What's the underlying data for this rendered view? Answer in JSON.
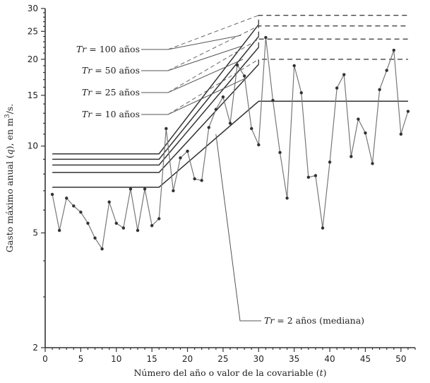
{
  "chart_data": {
    "type": "line",
    "title": "",
    "xlabel": "Número del año o valor de la covariable (t)",
    "ylabel": "Gasto máximo anual (q), en m³/s.",
    "xlim": [
      0,
      52
    ],
    "ylim": [
      2,
      30
    ],
    "y_scale": "log",
    "x_ticks": [
      0,
      5,
      10,
      15,
      20,
      25,
      30,
      35,
      40,
      45,
      50
    ],
    "y_ticks": [
      2,
      5,
      10,
      15,
      20,
      25,
      30
    ],
    "grid": false,
    "observed": {
      "x": [
        1,
        2,
        3,
        4,
        5,
        6,
        7,
        8,
        9,
        10,
        11,
        12,
        13,
        14,
        15,
        16,
        17,
        18,
        19,
        20,
        21,
        22,
        23,
        24,
        25,
        26,
        27,
        28,
        29,
        30,
        31,
        32,
        33,
        34,
        35,
        36,
        37,
        38,
        39,
        40,
        41,
        42,
        43,
        44,
        45,
        46,
        47,
        48,
        49,
        50,
        51
      ],
      "y": [
        6.8,
        5.1,
        6.6,
        6.2,
        5.9,
        5.4,
        4.8,
        4.4,
        6.4,
        5.4,
        5.2,
        7.1,
        5.1,
        7.1,
        5.3,
        5.6,
        11.5,
        7.0,
        9.1,
        9.6,
        7.7,
        7.6,
        11.6,
        13.4,
        14.8,
        12.0,
        19.1,
        17.5,
        11.5,
        10.1,
        23.8,
        14.4,
        9.5,
        6.6,
        19.0,
        15.3,
        7.8,
        7.9,
        5.2,
        8.8,
        15.9,
        17.7,
        9.2,
        12.4,
        11.1,
        8.7,
        15.7,
        18.3,
        21.5,
        11.0,
        13.2
      ]
    },
    "series": [
      {
        "name": "Tr = 100 años",
        "x": [
          1,
          16,
          30
        ],
        "y": [
          9.4,
          9.4,
          26.4
        ],
        "extension": [
          28.4,
          28.4
        ],
        "extension_x": [
          30,
          51
        ]
      },
      {
        "name": "Tr = 50 años",
        "x": [
          1,
          16,
          30
        ],
        "y": [
          9.0,
          9.0,
          24.0
        ],
        "extension": [
          26.1,
          26.1
        ],
        "extension_x": [
          30,
          51
        ]
      },
      {
        "name": "Tr = 25 años",
        "x": [
          1,
          16,
          30
        ],
        "y": [
          8.6,
          8.6,
          22.0
        ],
        "extension": [
          23.5,
          23.5
        ],
        "extension_x": [
          30,
          51
        ]
      },
      {
        "name": "Tr = 10 años",
        "x": [
          1,
          16,
          30
        ],
        "y": [
          8.1,
          8.1,
          19.2
        ],
        "extension": [
          20.0,
          20.0
        ],
        "extension_x": [
          30,
          51
        ]
      },
      {
        "name": "Tr = 2 años (mediana)",
        "x": [
          1,
          16,
          30,
          51
        ],
        "y": [
          7.2,
          7.2,
          14.3,
          14.3
        ]
      }
    ],
    "labels": {
      "tr100": {
        "italic": "Tr",
        "rest": " = 100 años"
      },
      "tr50": {
        "italic": "Tr",
        "rest": " = 50 años"
      },
      "tr25": {
        "italic": "Tr",
        "rest": " = 25 años"
      },
      "tr10": {
        "italic": "Tr",
        "rest": " = 10 años"
      },
      "tr2": {
        "italic": "Tr",
        "rest": " = 2 años (mediana)"
      }
    }
  }
}
